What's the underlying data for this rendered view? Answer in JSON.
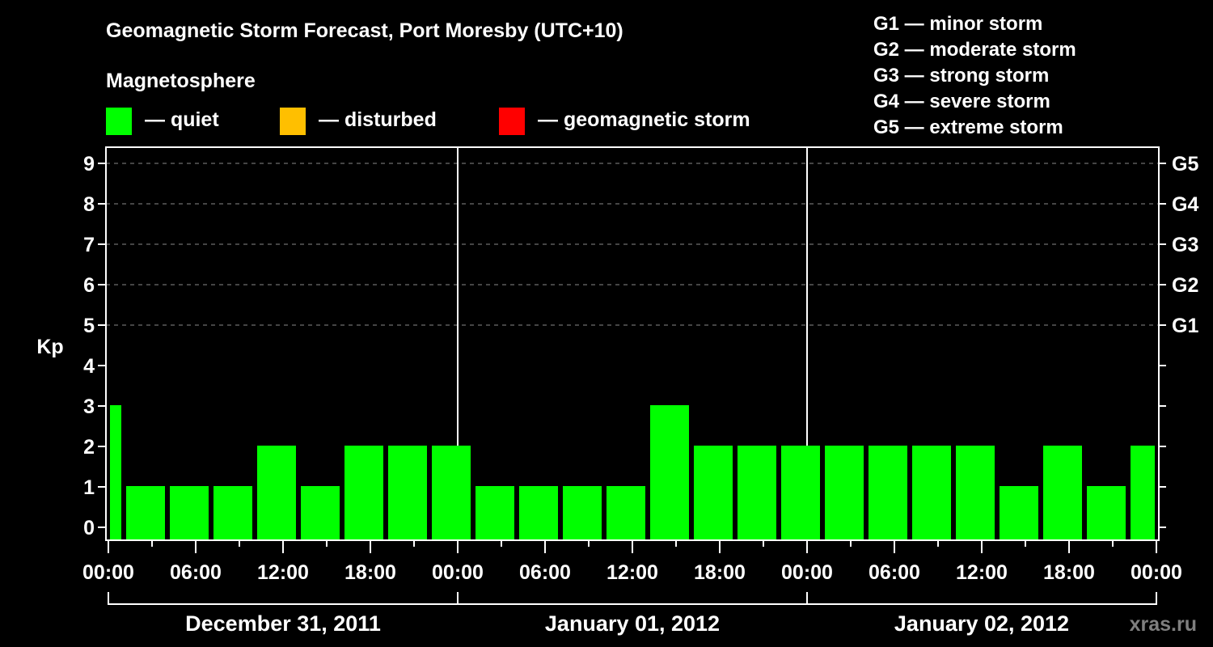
{
  "header": {
    "title": "Geomagnetic Storm Forecast, Port Moresby (UTC+10)",
    "subtitle": "Magnetosphere"
  },
  "legend": {
    "items": [
      {
        "label": "— quiet",
        "color": "#00ff00"
      },
      {
        "label": "— disturbed",
        "color": "#ffbf00"
      },
      {
        "label": "— geomagnetic storm",
        "color": "#ff0000"
      }
    ]
  },
  "storm_scale": {
    "items": [
      {
        "label": "G1 — minor storm"
      },
      {
        "label": "G2 — moderate storm"
      },
      {
        "label": "G3 — strong storm"
      },
      {
        "label": "G4 — severe storm"
      },
      {
        "label": "G5 — extreme storm"
      }
    ]
  },
  "watermark": "xras.ru",
  "chart_data": {
    "type": "bar",
    "title": "Geomagnetic Storm Forecast, Port Moresby (UTC+10)",
    "xlabel": "",
    "ylabel": "Kp",
    "ylim": [
      -0.3,
      9.4
    ],
    "yticks": [
      0,
      1,
      2,
      3,
      4,
      5,
      6,
      7,
      8,
      9
    ],
    "right_axis_labels": [
      {
        "kp": 5,
        "label": "G1"
      },
      {
        "kp": 6,
        "label": "G2"
      },
      {
        "kp": 7,
        "label": "G3"
      },
      {
        "kp": 8,
        "label": "G4"
      },
      {
        "kp": 9,
        "label": "G5"
      }
    ],
    "grid": "dashed horizontal at Kp 5-9",
    "x_tick_labels": [
      "00:00",
      "06:00",
      "12:00",
      "18:00",
      "00:00",
      "06:00",
      "12:00",
      "18:00",
      "00:00",
      "06:00",
      "12:00",
      "18:00",
      "00:00"
    ],
    "day_labels": [
      "December 31, 2011",
      "January 01, 2012",
      "January 02, 2012"
    ],
    "bar_interval_hours": 3,
    "bar_start_hours": [
      0,
      1,
      4,
      7,
      10,
      13,
      16,
      19,
      22,
      25,
      28,
      31,
      34,
      37,
      40,
      43,
      46,
      49,
      52,
      55,
      58,
      61,
      64,
      67,
      70
    ],
    "bar_end_hours": [
      1,
      4,
      7,
      10,
      13,
      16,
      19,
      22,
      25,
      28,
      31,
      34,
      37,
      40,
      43,
      46,
      49,
      52,
      55,
      58,
      61,
      64,
      67,
      70,
      72
    ],
    "values": [
      3,
      1,
      1,
      1,
      2,
      1,
      2,
      2,
      2,
      1,
      1,
      1,
      1,
      3,
      2,
      2,
      2,
      2,
      2,
      2,
      2,
      1,
      2,
      1,
      2
    ],
    "bar_status": "quiet",
    "bar_color": "#00ff00"
  }
}
